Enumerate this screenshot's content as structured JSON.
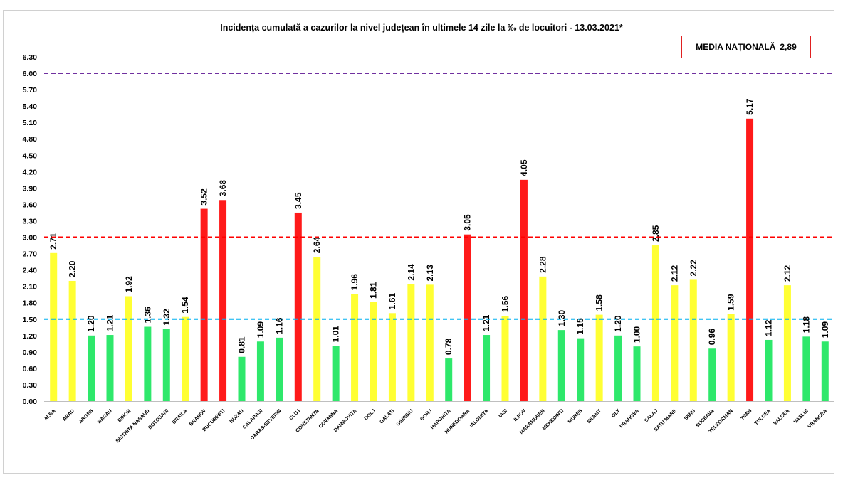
{
  "chart_data": {
    "type": "bar",
    "title": "Incidența cumulată a cazurilor la nivel județean în ultimele 14 zile la ‰ de locuitori - 13.03.2021*",
    "media_label": "MEDIA NAȚIONALĂ",
    "media_value": "2,89",
    "ylim": [
      0,
      6.3
    ],
    "yticks": [
      "0.00",
      "0.30",
      "0.60",
      "0.90",
      "1.20",
      "1.50",
      "1.80",
      "2.10",
      "2.40",
      "2.70",
      "3.00",
      "3.30",
      "3.60",
      "3.90",
      "4.20",
      "4.50",
      "4.80",
      "5.10",
      "5.40",
      "5.70",
      "6.00",
      "6.30"
    ],
    "reference_lines": [
      {
        "value": 6.0,
        "color": "#7030a0"
      },
      {
        "value": 3.0,
        "color": "#ff0000"
      },
      {
        "value": 1.5,
        "color": "#00b0f0"
      }
    ],
    "colors": {
      "green": "#2ee86b",
      "yellow": "#ffff33",
      "red": "#ff1a1a"
    },
    "categories": [
      "ALBA",
      "ARAD",
      "ARGES",
      "BACAU",
      "BIHOR",
      "BISTRITA NASAUD",
      "BOTOSANI",
      "BRAILA",
      "BRASOV",
      "BUCURESTI",
      "BUZAU",
      "CALARASI",
      "CARAS-SEVERIN",
      "CLUJ",
      "CONSTANTA",
      "COVASNA",
      "DAMBOVITA",
      "DOLJ",
      "GALATI",
      "GIURGIU",
      "GORJ",
      "HARGHITA",
      "HUNEDOARA",
      "IALOMITA",
      "IASI",
      "ILFOV",
      "MARAMURES",
      "MEHEDINTI",
      "MURES",
      "NEAMT",
      "OLT",
      "PRAHOVA",
      "SALAJ",
      "SATU MARE",
      "SIBIU",
      "SUCEAVA",
      "TELEORMAN",
      "TIMIS",
      "TULCEA",
      "VALCEA",
      "VASLUI",
      "VRANCEA"
    ],
    "values": [
      2.71,
      2.2,
      1.2,
      1.21,
      1.92,
      1.36,
      1.32,
      1.54,
      3.52,
      3.68,
      0.81,
      1.09,
      1.16,
      3.45,
      2.64,
      1.01,
      1.96,
      1.81,
      1.61,
      2.14,
      2.13,
      0.78,
      3.05,
      1.21,
      1.56,
      4.05,
      2.28,
      1.3,
      1.15,
      1.58,
      1.2,
      1.0,
      2.85,
      2.12,
      2.22,
      0.96,
      1.59,
      5.17,
      1.12,
      2.12,
      1.18,
      1.09
    ],
    "labels": [
      "2.71",
      "2.20",
      "1.20",
      "1.21",
      "1.92",
      "1.36",
      "1.32",
      "1.54",
      "3.52",
      "3.68",
      "0.81",
      "1.09",
      "1.16",
      "3.45",
      "2.64",
      "1.01",
      "1.96",
      "1.81",
      "1.61",
      "2.14",
      "2.13",
      "0.78",
      "3.05",
      "1.21",
      "1.56",
      "4.05",
      "2.28",
      "1.30",
      "1.15",
      "1.58",
      "1.20",
      "1.00",
      "2.85",
      "2.12",
      "2.22",
      "0.96",
      "1.59",
      "5.17",
      "1.12",
      "2.12",
      "1.18",
      "1.09"
    ]
  }
}
